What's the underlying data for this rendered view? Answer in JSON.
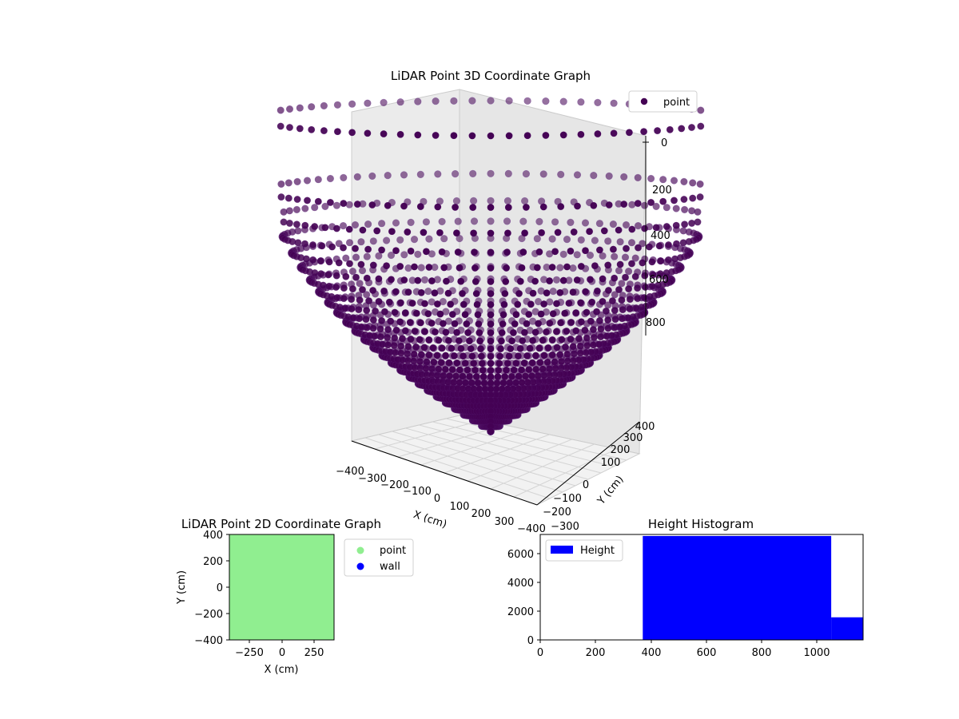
{
  "chart_data": [
    {
      "type": "scatter3d",
      "title": "LiDAR Point 3D Coordinate Graph",
      "xlabel": "X (cm)",
      "ylabel": "Y (cm)",
      "zlabel": "",
      "x_ticks": [
        "−400",
        "−300",
        "−200",
        "−100",
        "0",
        "100",
        "200",
        "300"
      ],
      "y_ticks": [
        "−400",
        "−300",
        "−200",
        "−100",
        "0",
        "100",
        "200",
        "300",
        "400"
      ],
      "z_ticks": [
        "0",
        "200",
        "400",
        "600",
        "800"
      ],
      "xlim": [
        -400,
        400
      ],
      "ylim": [
        -400,
        400
      ],
      "zlim": [
        -900,
        0
      ],
      "legend": {
        "entries": [
          {
            "label": "point",
            "color": "#440154"
          }
        ],
        "loc": "upper right"
      },
      "series": [
        {
          "name": "point",
          "color": "#440154",
          "shape": "bowl",
          "azimuth_samples": 80,
          "rim_radius": 400,
          "rim_z": 0,
          "bottom_z": -900
        }
      ]
    },
    {
      "type": "scatter",
      "title": "LiDAR Point 2D Coordinate Graph",
      "xlabel": "X (cm)",
      "ylabel": "Y (cm)",
      "x_ticks": [
        "−250",
        "0",
        "250"
      ],
      "y_ticks": [
        "400",
        "200",
        "0",
        "−200",
        "−400"
      ],
      "xlim": [
        -400,
        400
      ],
      "ylim": [
        -400,
        400
      ],
      "legend": {
        "entries": [
          {
            "label": "point",
            "color": "#90ee90"
          },
          {
            "label": "wall",
            "color": "#0000ff"
          }
        ],
        "loc": "outside right"
      }
    },
    {
      "type": "bar",
      "title": "Height Histogram",
      "x_ticks": [
        "0",
        "200",
        "400",
        "600",
        "800",
        "1000"
      ],
      "y_ticks": [
        "0",
        "2000",
        "4000",
        "6000"
      ],
      "xlim": [
        0,
        1165
      ],
      "ylim": [
        0,
        7000
      ],
      "legend": {
        "entries": [
          {
            "label": "Height",
            "color": "#0000ff"
          }
        ],
        "loc": "upper left"
      },
      "color": "#0000ff",
      "bins": [
        {
          "start": 370,
          "end": 1050,
          "count": 6900
        },
        {
          "start": 1050,
          "end": 1165,
          "count": 1500
        }
      ]
    }
  ]
}
